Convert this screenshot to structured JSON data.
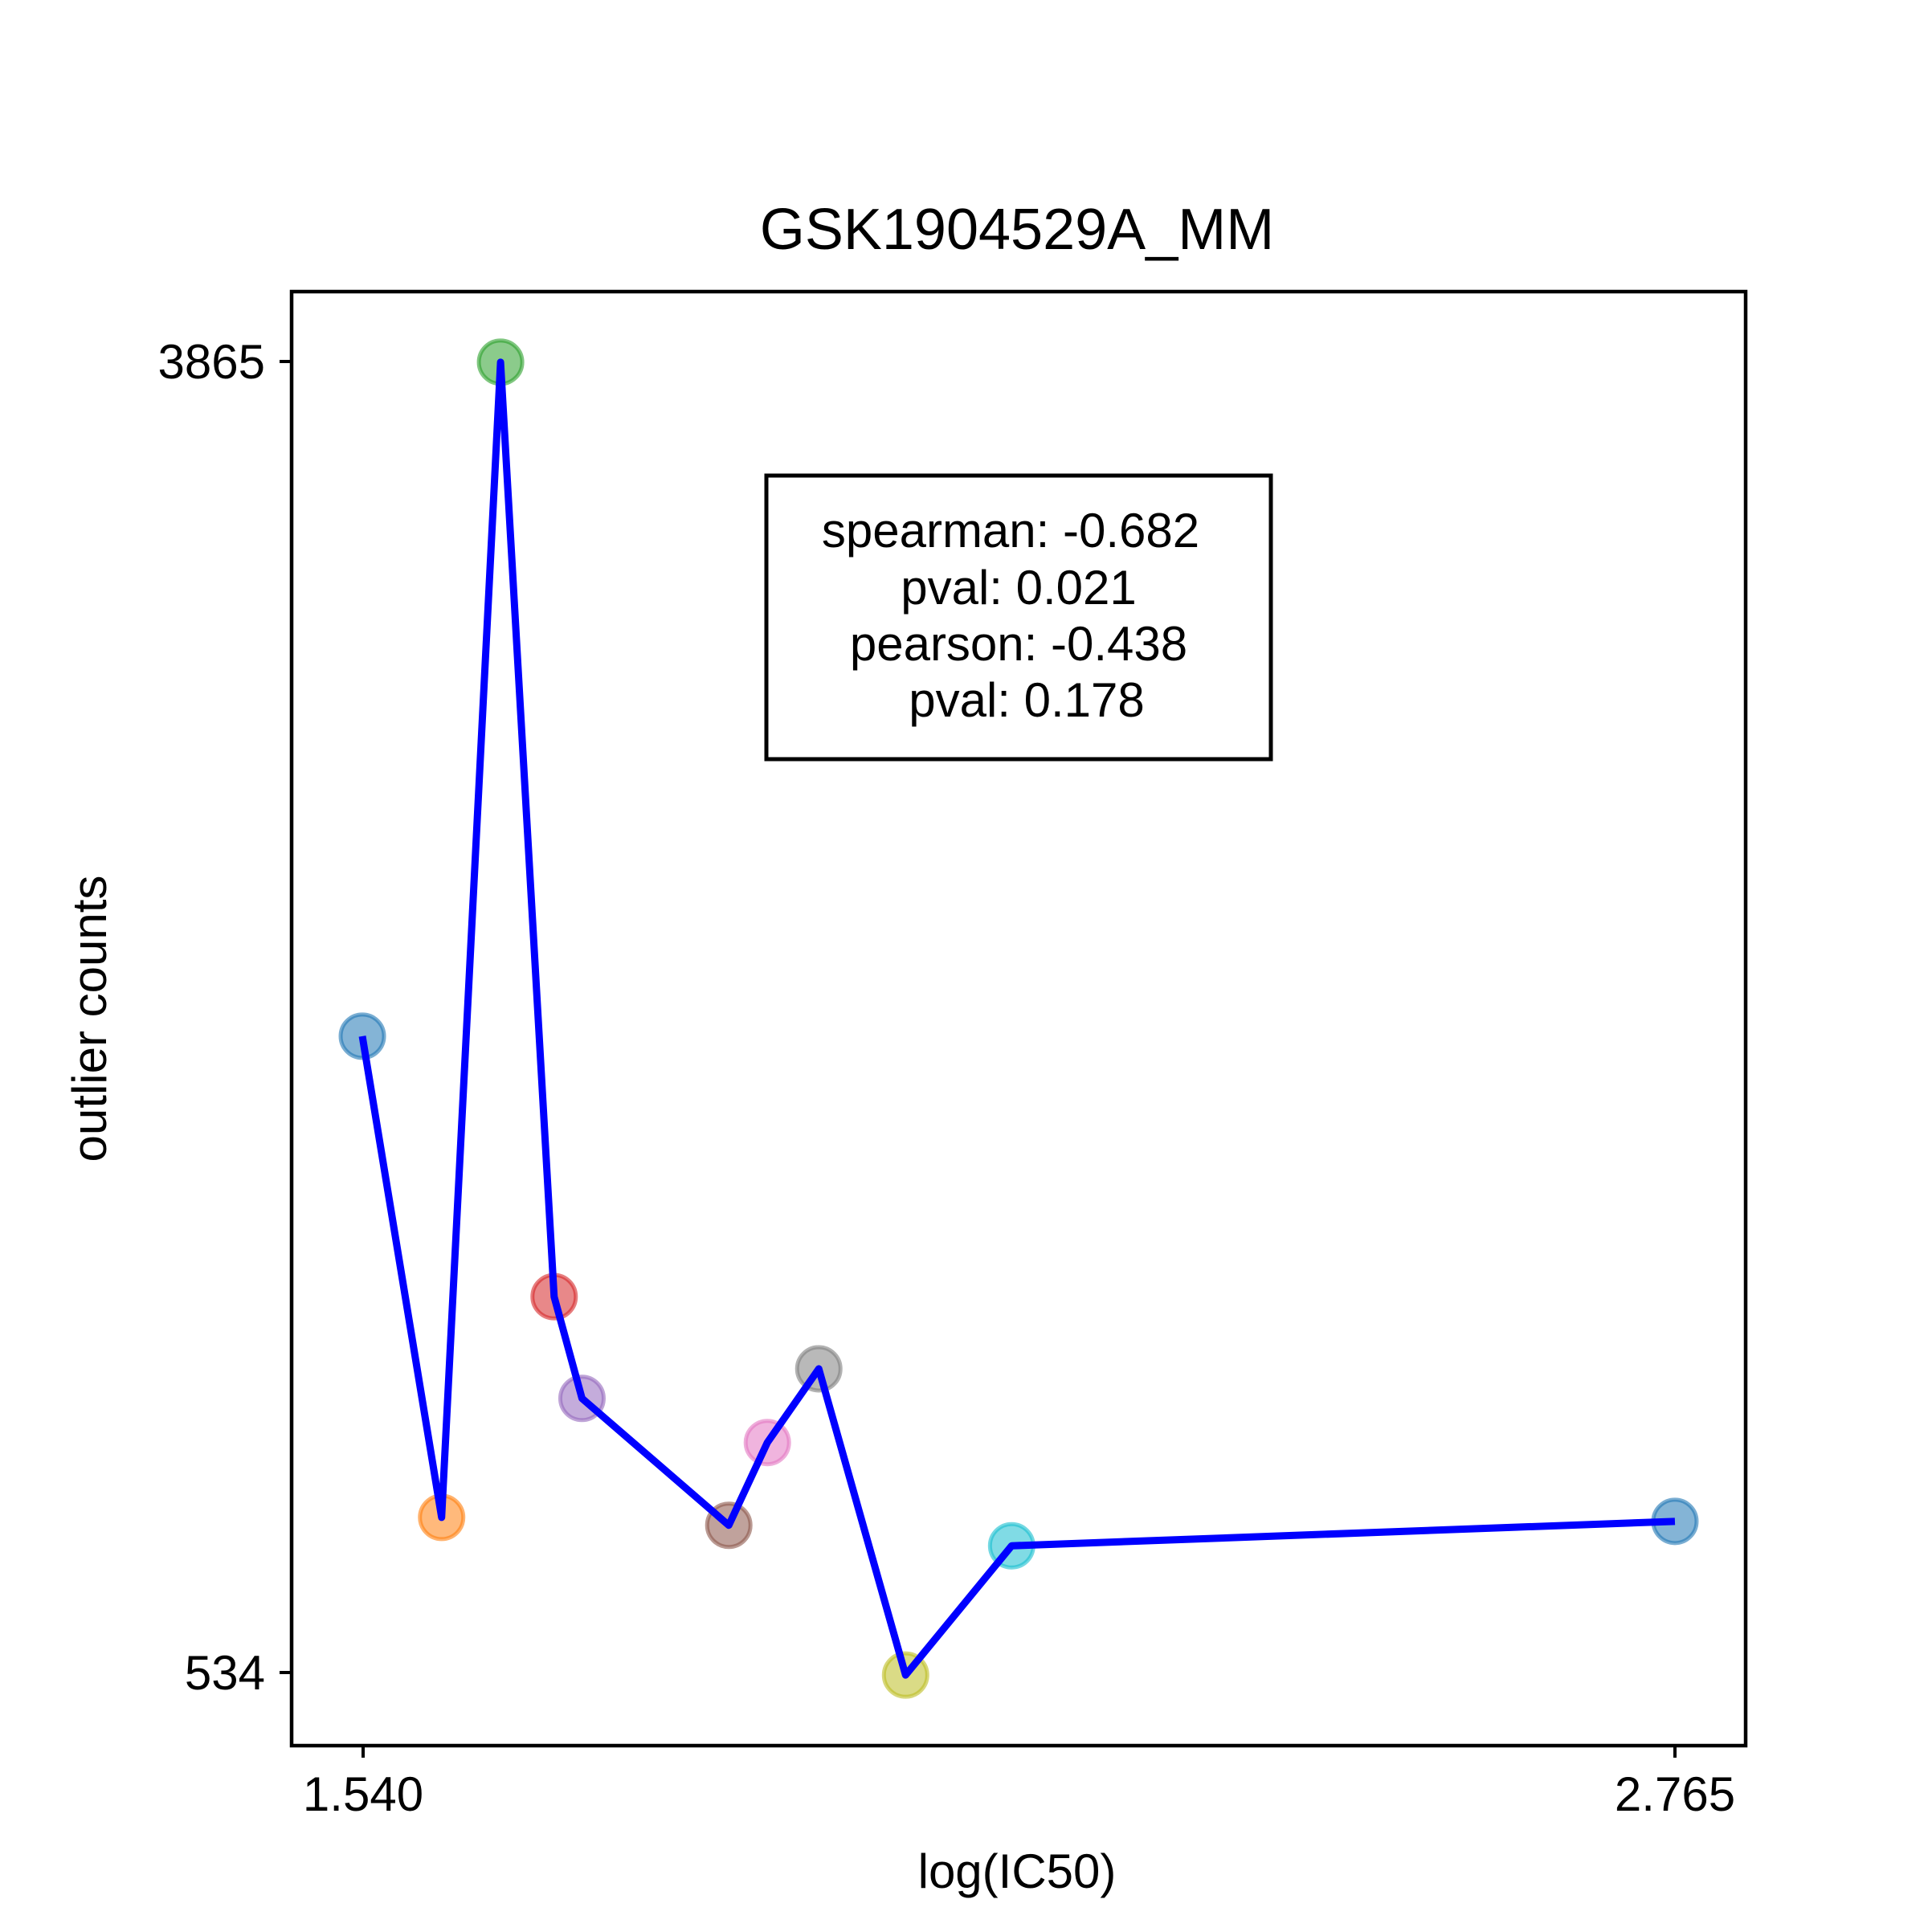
{
  "chart_data": {
    "type": "line",
    "title": "GSK1904529A_MM",
    "xlabel": "log(IC50)",
    "ylabel": "outlier counts",
    "xticks": [
      "1.540",
      "2.765"
    ],
    "yticks": [
      "3865",
      "534"
    ],
    "xlim": [
      1.474,
      2.831
    ],
    "ylim": [
      355,
      4044
    ],
    "grid": false,
    "series": [
      {
        "line_color": "#0000ff",
        "points": [
          {
            "x": 1.54,
            "y": 2155,
            "color": "#1f77b4"
          },
          {
            "x": 1.614,
            "y": 934,
            "color": "#ff7f0e"
          },
          {
            "x": 1.669,
            "y": 3865,
            "color": "#2ca02c"
          },
          {
            "x": 1.719,
            "y": 1494,
            "color": "#d62728"
          },
          {
            "x": 1.745,
            "y": 1236,
            "color": "#9467bd"
          },
          {
            "x": 1.882,
            "y": 914,
            "color": "#8c564b"
          },
          {
            "x": 1.918,
            "y": 1124,
            "color": "#e377c2"
          },
          {
            "x": 1.966,
            "y": 1311,
            "color": "#7f7f7f"
          },
          {
            "x": 2.047,
            "y": 534,
            "color": "#bcbd22"
          },
          {
            "x": 2.146,
            "y": 862,
            "color": "#17becf"
          },
          {
            "x": 2.765,
            "y": 924,
            "color": "#1f77b4"
          }
        ]
      }
    ],
    "stats_box": {
      "placement": "upper-center",
      "lines": [
        "spearman: -0.682",
        "pval: 0.021",
        "pearson: -0.438",
        "pval: 0.178"
      ]
    }
  }
}
